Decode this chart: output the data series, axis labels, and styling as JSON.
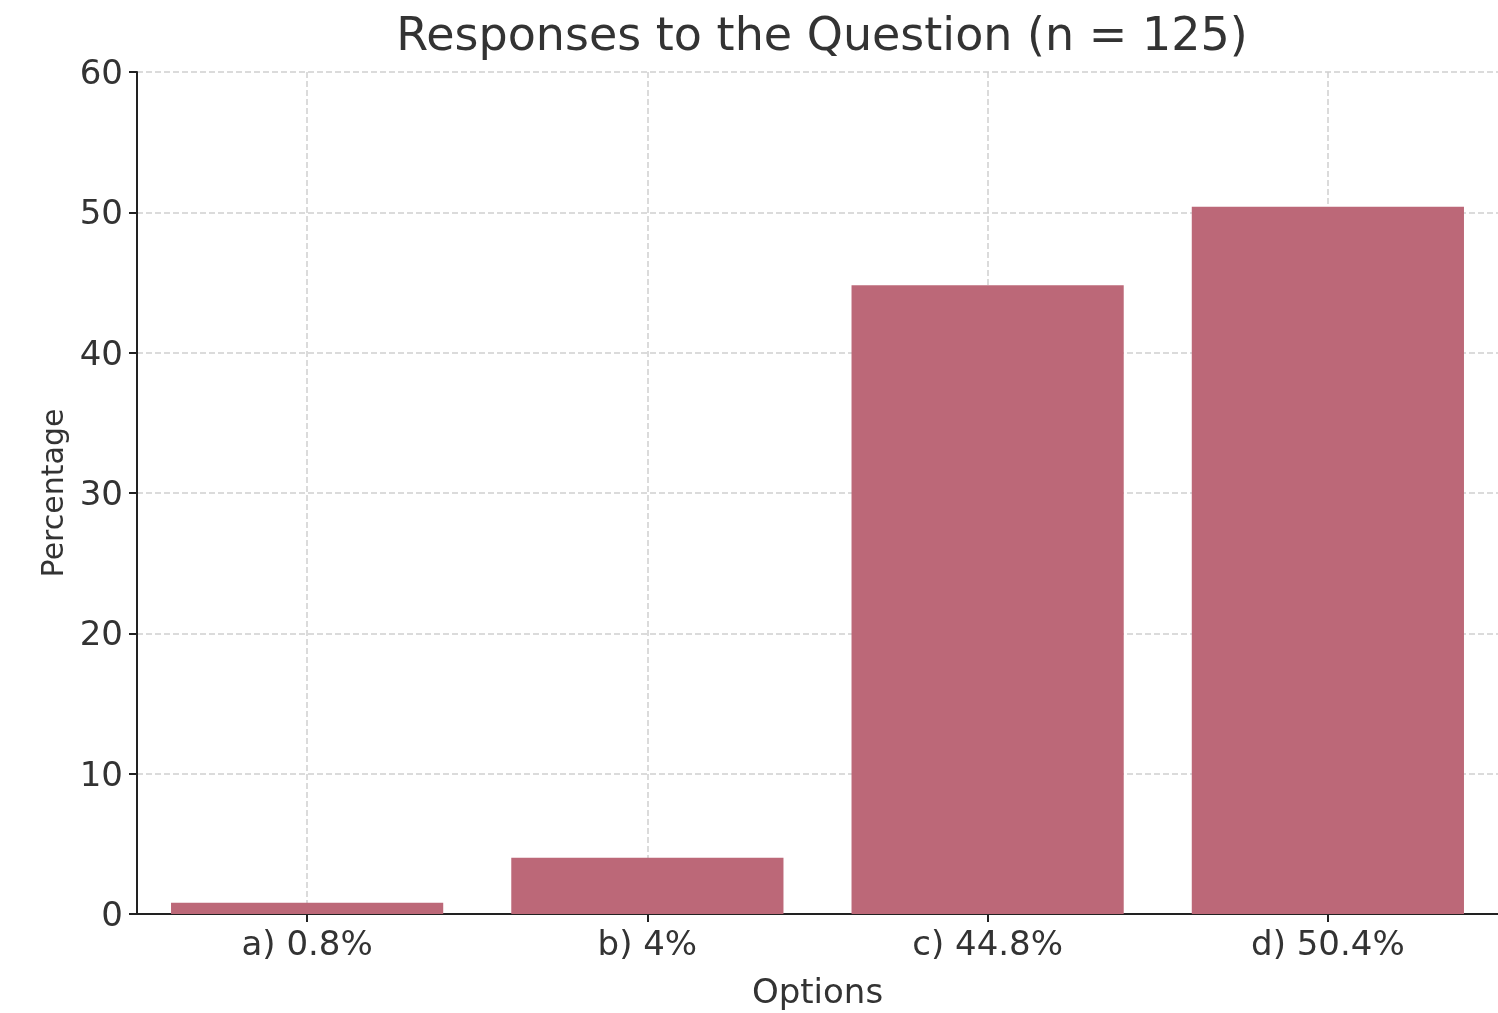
{
  "chart_data": {
    "type": "bar",
    "title": "Responses to the Question (n = 125)",
    "xlabel": "Options",
    "ylabel": "Percentage",
    "categories": [
      "a) 0.8%",
      "b) 4%",
      "c) 44.8%",
      "d) 50.4%"
    ],
    "values": [
      0.8,
      4,
      44.8,
      50.4
    ],
    "color": "#bc6878",
    "ylim": [
      0,
      60
    ],
    "yticks": [
      0,
      10,
      20,
      30,
      40,
      50,
      60
    ],
    "grid": true
  }
}
